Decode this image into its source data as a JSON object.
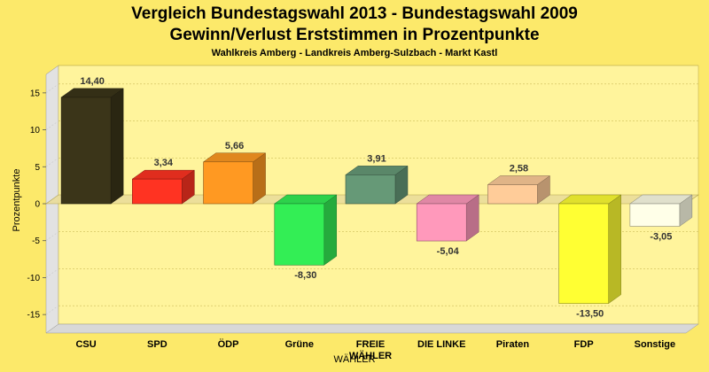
{
  "chart_data": {
    "type": "bar",
    "title_line1": "Vergleich Bundestagswahl 2013 - Bundestagswahl 2009",
    "title_line2": "Gewinn/Verlust Erststimmen in Prozentpunkte",
    "subtitle": "Wahlkreis Amberg - Landkreis Amberg-Sulzbach - Markt Kastl",
    "xlabel": "WÄHLER",
    "ylabel": "Prozentpunkte",
    "ylim": [
      -17.5,
      17.5
    ],
    "yticks": [
      -15,
      -10,
      -5,
      0,
      5,
      10,
      15
    ],
    "grid": true,
    "categories": [
      "CSU",
      "SPD",
      "ÖDP",
      "Grüne",
      "FREIE WÄHLER",
      "DIE LINKE",
      "Piraten",
      "FDP",
      "Sonstige"
    ],
    "category_lines": [
      [
        "CSU"
      ],
      [
        "SPD"
      ],
      [
        "ÖDP"
      ],
      [
        "Grüne"
      ],
      [
        "FREIE",
        "WÄHLER"
      ],
      [
        "DIE LINKE"
      ],
      [
        "Piraten"
      ],
      [
        "FDP"
      ],
      [
        "Sonstige"
      ]
    ],
    "values": [
      14.4,
      3.34,
      5.66,
      -8.3,
      3.91,
      -5.04,
      2.58,
      -13.5,
      -3.05
    ],
    "value_labels": [
      "14,40",
      "3,34",
      "5,66",
      "-8,30",
      "3,91",
      "-5,04",
      "2,58",
      "-13,50",
      "-3,05"
    ],
    "colors": [
      "#3b3519",
      "#ff3322",
      "#ff9922",
      "#33ee55",
      "#669977",
      "#ff99bb",
      "#ffcc99",
      "#ffff33",
      "#ffffe8"
    ]
  }
}
